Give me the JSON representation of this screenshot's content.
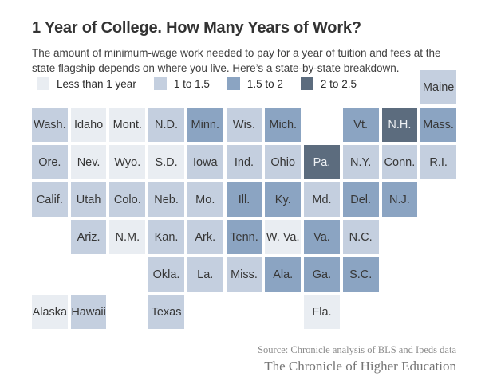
{
  "header": {
    "title": "1 Year of College. How Many Years of Work?",
    "subtitle": "The amount of minimum-wage work needed to pay for a year of tuition and fees at the state flagship depends on where you live. Here’s a state-by-state breakdown."
  },
  "footer": {
    "source": "Source: Chronicle analysis of BLS and Ipeds data",
    "publication": "The Chronicle of Higher Education"
  },
  "chart_data": {
    "type": "heatmap",
    "subtype": "us-state-tile-cartogram",
    "title": "1 Year of College. How Many Years of Work?",
    "unit": "years of minimum-wage work per year of tuition and fees",
    "legend_position": "top-left",
    "legend": [
      "Less than 1 year",
      "1 to 1.5",
      "1.5 to 2",
      "2 to 2.5"
    ],
    "palette": {
      "Less than 1 year": "#e9edf2",
      "1 to 1.5": "#c4cfdf",
      "1.5 to 2": "#8ba4c2",
      "2 to 2.5": "#5c6c7e"
    },
    "dark_categories": [
      "2 to 2.5"
    ],
    "grid": {
      "rows": 7,
      "cols": 11
    },
    "states": [
      {
        "label": "Maine",
        "row": 1,
        "col": 11,
        "category": "1 to 1.5"
      },
      {
        "label": "Wash.",
        "row": 2,
        "col": 1,
        "category": "1 to 1.5"
      },
      {
        "label": "Idaho",
        "row": 2,
        "col": 2,
        "category": "Less than 1 year"
      },
      {
        "label": "Mont.",
        "row": 2,
        "col": 3,
        "category": "Less than 1 year"
      },
      {
        "label": "N.D.",
        "row": 2,
        "col": 4,
        "category": "1 to 1.5"
      },
      {
        "label": "Minn.",
        "row": 2,
        "col": 5,
        "category": "1.5 to 2"
      },
      {
        "label": "Wis.",
        "row": 2,
        "col": 6,
        "category": "1 to 1.5"
      },
      {
        "label": "Mich.",
        "row": 2,
        "col": 7,
        "category": "1.5 to 2"
      },
      {
        "label": "Vt.",
        "row": 2,
        "col": 9,
        "category": "1.5 to 2"
      },
      {
        "label": "N.H.",
        "row": 2,
        "col": 10,
        "category": "2 to 2.5"
      },
      {
        "label": "Mass.",
        "row": 2,
        "col": 11,
        "category": "1.5 to 2"
      },
      {
        "label": "Ore.",
        "row": 3,
        "col": 1,
        "category": "1 to 1.5"
      },
      {
        "label": "Nev.",
        "row": 3,
        "col": 2,
        "category": "Less than 1 year"
      },
      {
        "label": "Wyo.",
        "row": 3,
        "col": 3,
        "category": "Less than 1 year"
      },
      {
        "label": "S.D.",
        "row": 3,
        "col": 4,
        "category": "Less than 1 year"
      },
      {
        "label": "Iowa",
        "row": 3,
        "col": 5,
        "category": "1 to 1.5"
      },
      {
        "label": "Ind.",
        "row": 3,
        "col": 6,
        "category": "1 to 1.5"
      },
      {
        "label": "Ohio",
        "row": 3,
        "col": 7,
        "category": "1 to 1.5"
      },
      {
        "label": "Pa.",
        "row": 3,
        "col": 8,
        "category": "2 to 2.5"
      },
      {
        "label": "N.Y.",
        "row": 3,
        "col": 9,
        "category": "1 to 1.5"
      },
      {
        "label": "Conn.",
        "row": 3,
        "col": 10,
        "category": "1 to 1.5"
      },
      {
        "label": "R.I.",
        "row": 3,
        "col": 11,
        "category": "1 to 1.5"
      },
      {
        "label": "Calif.",
        "row": 4,
        "col": 1,
        "category": "1 to 1.5"
      },
      {
        "label": "Utah",
        "row": 4,
        "col": 2,
        "category": "1 to 1.5"
      },
      {
        "label": "Colo.",
        "row": 4,
        "col": 3,
        "category": "1 to 1.5"
      },
      {
        "label": "Neb.",
        "row": 4,
        "col": 4,
        "category": "1 to 1.5"
      },
      {
        "label": "Mo.",
        "row": 4,
        "col": 5,
        "category": "1 to 1.5"
      },
      {
        "label": "Ill.",
        "row": 4,
        "col": 6,
        "category": "1.5 to 2"
      },
      {
        "label": "Ky.",
        "row": 4,
        "col": 7,
        "category": "1.5 to 2"
      },
      {
        "label": "Md.",
        "row": 4,
        "col": 8,
        "category": "1 to 1.5"
      },
      {
        "label": "Del.",
        "row": 4,
        "col": 9,
        "category": "1.5 to 2"
      },
      {
        "label": "N.J.",
        "row": 4,
        "col": 10,
        "category": "1.5 to 2"
      },
      {
        "label": "Ariz.",
        "row": 5,
        "col": 2,
        "category": "1 to 1.5"
      },
      {
        "label": "N.M.",
        "row": 5,
        "col": 3,
        "category": "Less than 1 year"
      },
      {
        "label": "Kan.",
        "row": 5,
        "col": 4,
        "category": "1 to 1.5"
      },
      {
        "label": "Ark.",
        "row": 5,
        "col": 5,
        "category": "1 to 1.5"
      },
      {
        "label": "Tenn.",
        "row": 5,
        "col": 6,
        "category": "1.5 to 2"
      },
      {
        "label": "W. Va.",
        "row": 5,
        "col": 7,
        "category": "Less than 1 year"
      },
      {
        "label": "Va.",
        "row": 5,
        "col": 8,
        "category": "1.5 to 2"
      },
      {
        "label": "N.C.",
        "row": 5,
        "col": 9,
        "category": "1 to 1.5"
      },
      {
        "label": "Okla.",
        "row": 6,
        "col": 4,
        "category": "1 to 1.5"
      },
      {
        "label": "La.",
        "row": 6,
        "col": 5,
        "category": "1 to 1.5"
      },
      {
        "label": "Miss.",
        "row": 6,
        "col": 6,
        "category": "1 to 1.5"
      },
      {
        "label": "Ala.",
        "row": 6,
        "col": 7,
        "category": "1.5 to 2"
      },
      {
        "label": "Ga.",
        "row": 6,
        "col": 8,
        "category": "1.5 to 2"
      },
      {
        "label": "S.C.",
        "row": 6,
        "col": 9,
        "category": "1.5 to 2"
      },
      {
        "label": "Alaska",
        "row": 7,
        "col": 1,
        "category": "Less than 1 year"
      },
      {
        "label": "Hawaii",
        "row": 7,
        "col": 2,
        "category": "1 to 1.5"
      },
      {
        "label": "Texas",
        "row": 7,
        "col": 4,
        "category": "1 to 1.5"
      },
      {
        "label": "Fla.",
        "row": 7,
        "col": 8,
        "category": "Less than 1 year"
      }
    ]
  }
}
